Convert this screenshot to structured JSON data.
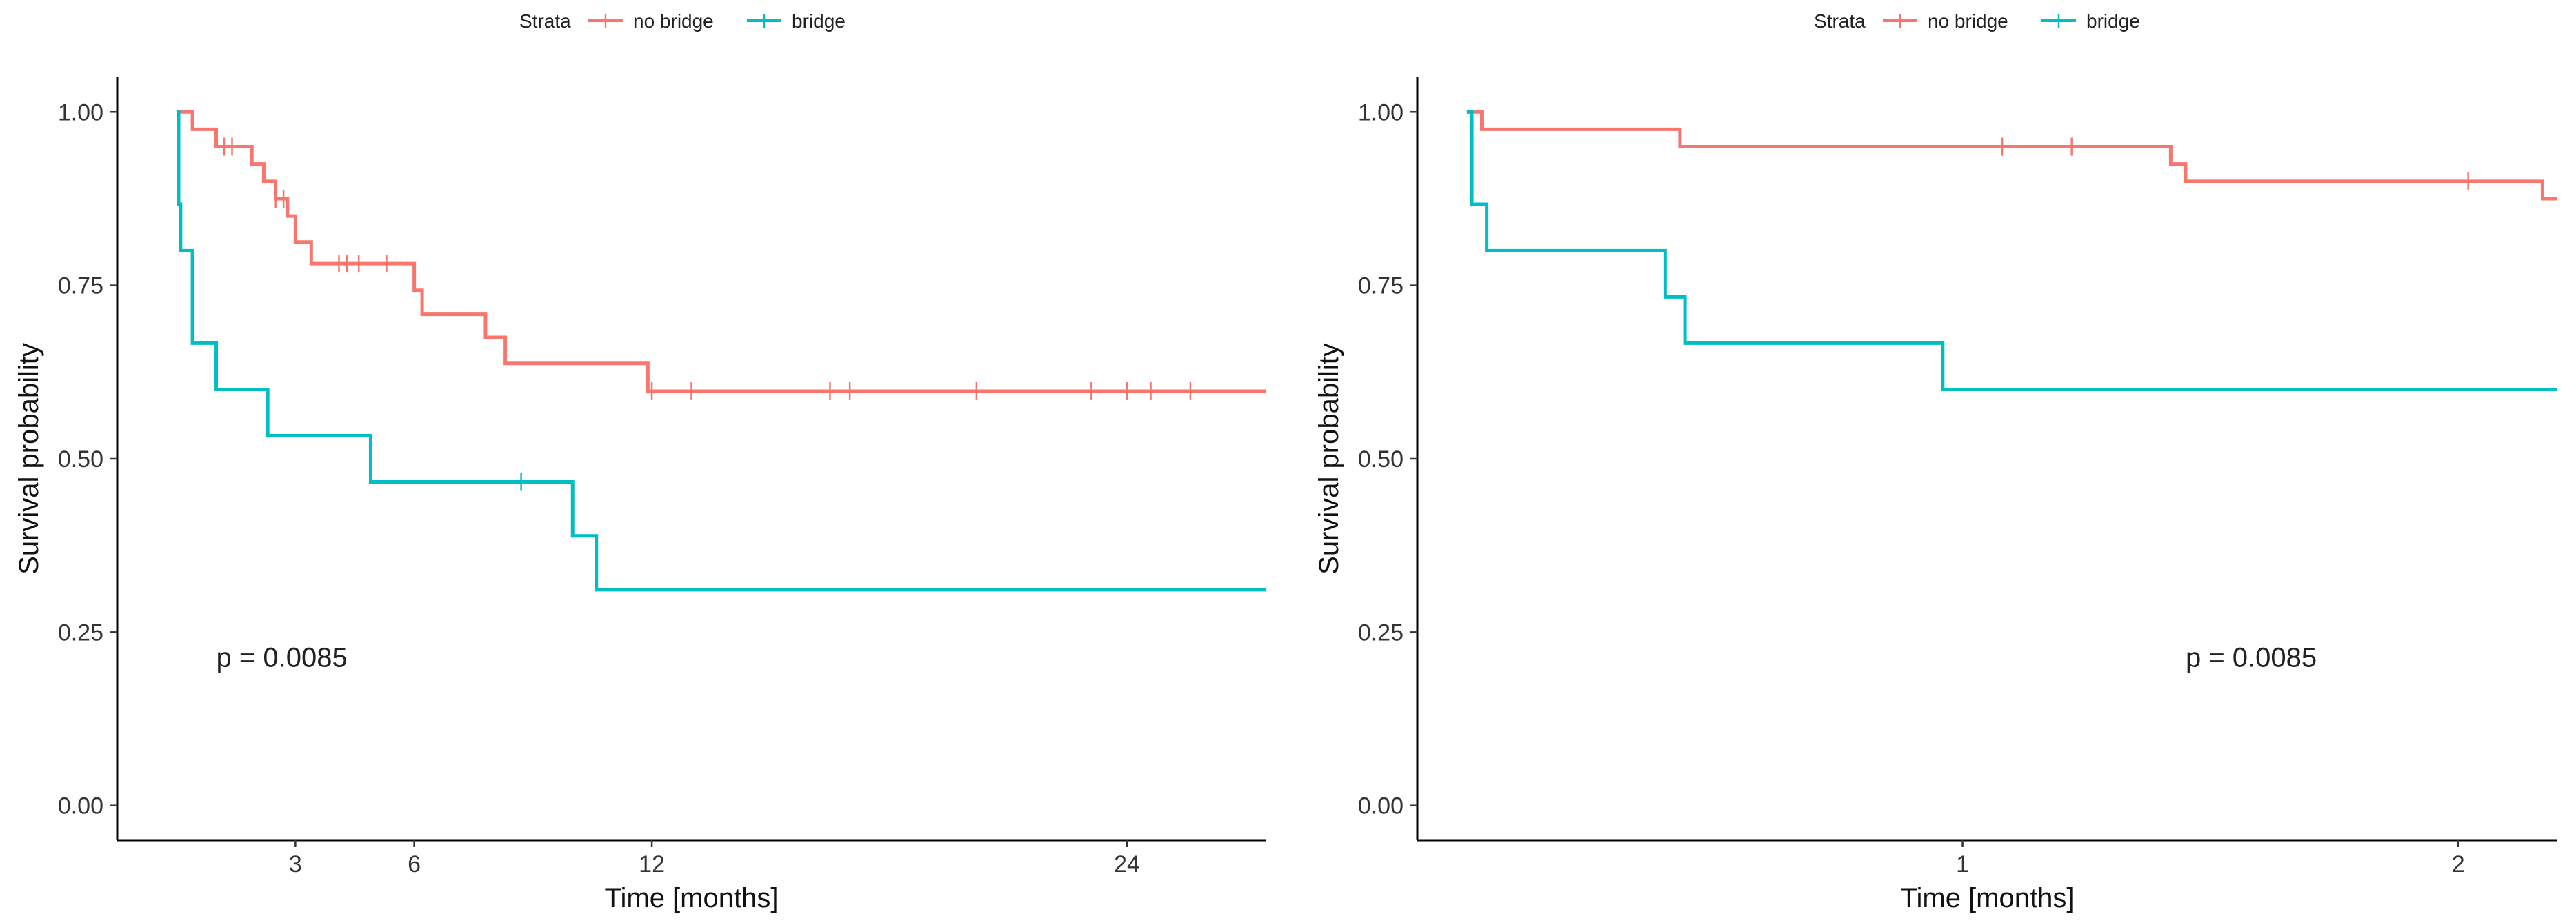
{
  "chart_data": [
    {
      "type": "line",
      "xlabel": "Time [months]",
      "ylabel": "Survival probability",
      "xlim": [
        -1.5,
        27.5
      ],
      "ylim": [
        -0.05,
        1.05
      ],
      "x_ticks": [
        3,
        6,
        12,
        24
      ],
      "y_ticks": [
        0,
        0.25,
        0.5,
        0.75,
        1.0
      ],
      "y_tick_labels": [
        "0.00",
        "0.25",
        "0.50",
        "0.75",
        "1.00"
      ],
      "grid": false,
      "legend": {
        "title": "Strata",
        "placement": "top-center",
        "entries": [
          "no bridge",
          "bridge"
        ]
      },
      "annotation": {
        "text": "p = 0.0085",
        "x": 1.0,
        "y": 0.2
      },
      "series": [
        {
          "name": "no bridge",
          "color": "#F8766D",
          "x": [
            0,
            0.4,
            1.0,
            1.9,
            2.2,
            2.5,
            2.8,
            3.0,
            3.4,
            4.0,
            6.0,
            6.2,
            7.8,
            8.3,
            11.9,
            27.5
          ],
          "y": [
            1.0,
            0.975,
            0.95,
            0.925,
            0.9,
            0.875,
            0.85,
            0.8125,
            0.7813,
            0.7813,
            0.7429,
            0.7083,
            0.675,
            0.6375,
            0.5975,
            0.5975
          ],
          "censor_x": [
            1.2,
            1.4,
            2.5,
            2.7,
            4.1,
            4.3,
            4.6,
            5.3,
            12.0,
            13.0,
            16.5,
            17.0,
            20.2,
            23.1,
            24.0,
            24.6,
            25.6
          ],
          "censor_y": [
            0.95,
            0.95,
            0.875,
            0.875,
            0.7813,
            0.7813,
            0.7813,
            0.7813,
            0.5975,
            0.5975,
            0.5975,
            0.5975,
            0.5975,
            0.5975,
            0.5975,
            0.5975,
            0.5975
          ]
        },
        {
          "name": "bridge",
          "color": "#00BFC4",
          "x": [
            0,
            0.05,
            0.1,
            0.4,
            1.0,
            2.3,
            4.9,
            10.0,
            10.6,
            27.5
          ],
          "y": [
            1.0,
            0.867,
            0.8,
            0.6667,
            0.6,
            0.5333,
            0.4667,
            0.3889,
            0.3111,
            0.3111
          ],
          "censor_x": [
            8.7
          ],
          "censor_y": [
            0.4667
          ]
        }
      ]
    },
    {
      "type": "line",
      "xlabel": "Time [months]",
      "ylabel": "Survival probability",
      "xlim": [
        -0.1,
        2.2
      ],
      "ylim": [
        -0.05,
        1.05
      ],
      "x_ticks": [
        1,
        2
      ],
      "y_ticks": [
        0,
        0.25,
        0.5,
        0.75,
        1.0
      ],
      "y_tick_labels": [
        "0.00",
        "0.25",
        "0.50",
        "0.75",
        "1.00"
      ],
      "grid": false,
      "legend": {
        "title": "Strata",
        "placement": "top-center",
        "entries": [
          "no bridge",
          "bridge"
        ]
      },
      "annotation": {
        "text": "p = 0.0085",
        "x": 1.45,
        "y": 0.2
      },
      "series": [
        {
          "name": "no bridge",
          "color": "#F8766D",
          "x": [
            0,
            0.03,
            0.43,
            1.42,
            1.45,
            2.17,
            2.2
          ],
          "y": [
            1.0,
            0.975,
            0.95,
            0.925,
            0.9,
            0.875,
            0.875
          ],
          "censor_x": [
            1.08,
            1.22,
            2.02
          ],
          "censor_y": [
            0.95,
            0.95,
            0.9
          ]
        },
        {
          "name": "bridge",
          "color": "#00BFC4",
          "x": [
            0,
            0.01,
            0.04,
            0.4,
            0.44,
            0.96,
            2.2
          ],
          "y": [
            1.0,
            0.867,
            0.8,
            0.7333,
            0.6667,
            0.6,
            0.6
          ],
          "censor_x": [],
          "censor_y": []
        }
      ]
    }
  ]
}
